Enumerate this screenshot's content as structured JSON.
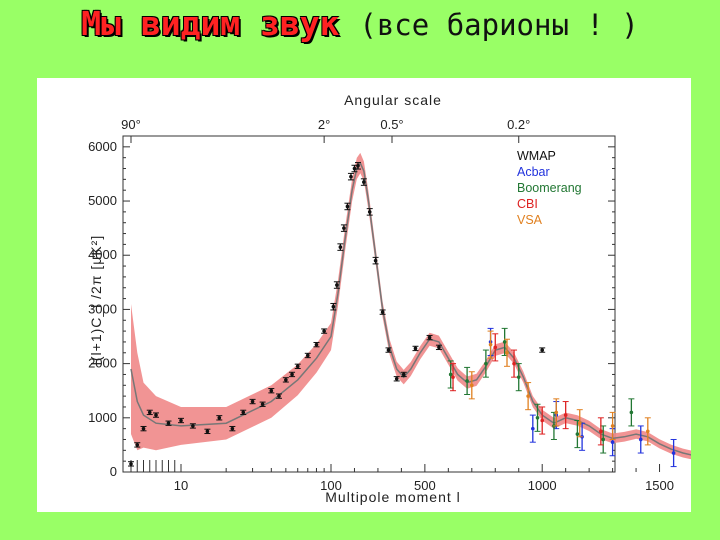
{
  "slide": {
    "title_main": "Мы видим звук",
    "title_sub": "(все барионы ! )"
  },
  "chart_data": {
    "type": "scatter",
    "title": "Angular scale",
    "xlabel": "Multipole moment l",
    "ylabel": "l(l+1)C_l /2π [μK²]",
    "x_scale": "linear beyond l=100, compressed at low l",
    "ylim": [
      0,
      6200
    ],
    "y_ticks": [
      0,
      1000,
      2000,
      3000,
      4000,
      5000,
      6000
    ],
    "y_tick_labels": [
      "0",
      "1000",
      "2000",
      "3000",
      "4000",
      "5000",
      "6000"
    ],
    "x_tick_labels": [
      "10",
      "100",
      "500",
      "1000",
      "1500"
    ],
    "x_tick_values": [
      10,
      100,
      500,
      1000,
      1500
    ],
    "top_tick_labels": [
      "90°",
      "2°",
      "0.5°",
      "0.2°"
    ],
    "top_tick_l": [
      2,
      90,
      360,
      900
    ],
    "legend_position": "top-right",
    "model_curve": {
      "color": "#777777",
      "band_color": "#f08888",
      "points": [
        [
          2,
          1900
        ],
        [
          3,
          1300
        ],
        [
          4,
          1050
        ],
        [
          6,
          900
        ],
        [
          10,
          850
        ],
        [
          20,
          900
        ],
        [
          40,
          1300
        ],
        [
          60,
          1700
        ],
        [
          80,
          2100
        ],
        [
          100,
          2500
        ],
        [
          130,
          3300
        ],
        [
          160,
          4300
        ],
        [
          190,
          5200
        ],
        [
          210,
          5600
        ],
        [
          225,
          5700
        ],
        [
          240,
          5550
        ],
        [
          260,
          5000
        ],
        [
          290,
          4000
        ],
        [
          320,
          3000
        ],
        [
          350,
          2300
        ],
        [
          380,
          1900
        ],
        [
          410,
          1750
        ],
        [
          440,
          1900
        ],
        [
          480,
          2200
        ],
        [
          520,
          2450
        ],
        [
          560,
          2400
        ],
        [
          600,
          2100
        ],
        [
          640,
          1800
        ],
        [
          680,
          1650
        ],
        [
          720,
          1700
        ],
        [
          760,
          1950
        ],
        [
          800,
          2250
        ],
        [
          840,
          2300
        ],
        [
          880,
          2100
        ],
        [
          920,
          1750
        ],
        [
          960,
          1300
        ],
        [
          1000,
          1050
        ],
        [
          1050,
          900
        ],
        [
          1100,
          1000
        ],
        [
          1150,
          950
        ],
        [
          1200,
          850
        ],
        [
          1250,
          700
        ],
        [
          1300,
          620
        ],
        [
          1350,
          650
        ],
        [
          1400,
          700
        ],
        [
          1450,
          650
        ],
        [
          1500,
          520
        ],
        [
          1550,
          420
        ],
        [
          1600,
          350
        ],
        [
          1650,
          300
        ]
      ],
      "band_upper": [
        [
          2,
          1200
        ],
        [
          3,
          900
        ],
        [
          4,
          600
        ],
        [
          6,
          500
        ],
        [
          10,
          350
        ],
        [
          20,
          300
        ],
        [
          40,
          300
        ],
        [
          100,
          250
        ],
        [
          200,
          200
        ],
        [
          300,
          150
        ],
        [
          500,
          120
        ],
        [
          1000,
          100
        ],
        [
          1650,
          80
        ]
      ]
    },
    "series": [
      {
        "name": "WMAP",
        "color": "#111111",
        "points": [
          [
            2,
            150
          ],
          [
            3,
            500
          ],
          [
            4,
            800
          ],
          [
            5,
            1100
          ],
          [
            6,
            1050
          ],
          [
            8,
            900
          ],
          [
            10,
            950
          ],
          [
            12,
            850
          ],
          [
            15,
            750
          ],
          [
            18,
            1000
          ],
          [
            22,
            800
          ],
          [
            26,
            1100
          ],
          [
            30,
            1300
          ],
          [
            35,
            1250
          ],
          [
            40,
            1500
          ],
          [
            45,
            1400
          ],
          [
            50,
            1700
          ],
          [
            55,
            1800
          ],
          [
            60,
            1950
          ],
          [
            70,
            2150
          ],
          [
            80,
            2350
          ],
          [
            90,
            2600
          ],
          [
            110,
            3050
          ],
          [
            125,
            3450
          ],
          [
            140,
            4150
          ],
          [
            155,
            4500
          ],
          [
            170,
            4900
          ],
          [
            185,
            5450
          ],
          [
            200,
            5600
          ],
          [
            215,
            5650
          ],
          [
            240,
            5350
          ],
          [
            265,
            4800
          ],
          [
            290,
            3900
          ],
          [
            320,
            2950
          ],
          [
            345,
            2250
          ],
          [
            380,
            1720
          ],
          [
            410,
            1800
          ],
          [
            460,
            2280
          ],
          [
            520,
            2480
          ],
          [
            560,
            2300
          ],
          [
            1000,
            2250
          ]
        ]
      },
      {
        "name": "Acbar",
        "color": "#2233dd",
        "points": [
          [
            780,
            2400
          ],
          [
            960,
            800
          ],
          [
            1060,
            1050
          ],
          [
            1170,
            650
          ],
          [
            1300,
            550
          ],
          [
            1420,
            600
          ],
          [
            1560,
            350
          ]
        ]
      },
      {
        "name": "Boomerang",
        "color": "#227733",
        "points": [
          [
            610,
            1800
          ],
          [
            680,
            1680
          ],
          [
            760,
            2000
          ],
          [
            840,
            2400
          ],
          [
            900,
            1750
          ],
          [
            980,
            1000
          ],
          [
            1050,
            850
          ],
          [
            1150,
            700
          ],
          [
            1260,
            600
          ],
          [
            1380,
            1100
          ]
        ]
      },
      {
        "name": "CBI",
        "color": "#dd2222",
        "points": [
          [
            620,
            1750
          ],
          [
            800,
            2300
          ],
          [
            880,
            2000
          ],
          [
            1000,
            950
          ],
          [
            1100,
            1050
          ],
          [
            1250,
            750
          ]
        ]
      },
      {
        "name": "VSA",
        "color": "#e08020",
        "points": [
          [
            700,
            1600
          ],
          [
            780,
            2350
          ],
          [
            850,
            2200
          ],
          [
            940,
            1400
          ],
          [
            1060,
            1100
          ],
          [
            1160,
            900
          ],
          [
            1300,
            850
          ],
          [
            1450,
            750
          ]
        ]
      }
    ]
  }
}
